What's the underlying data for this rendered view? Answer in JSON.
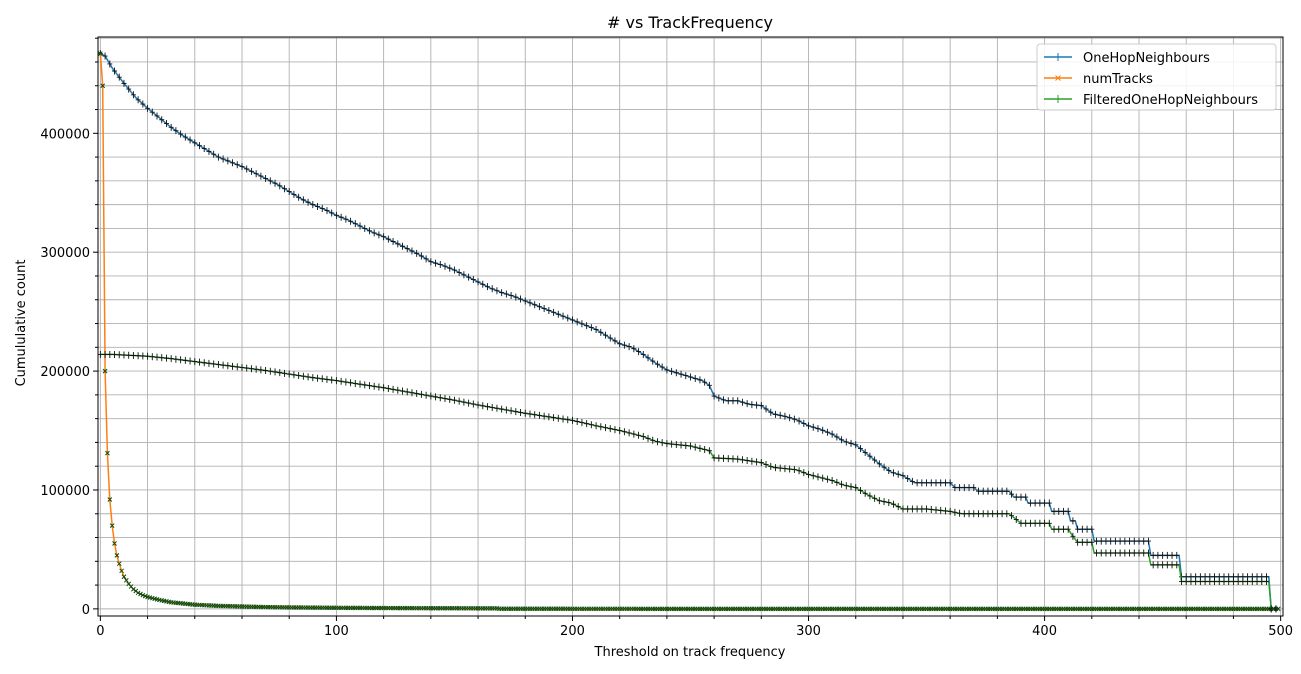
{
  "chart_data": {
    "type": "line",
    "title": "# vs TrackFrequency",
    "xlabel": "Threshold on track frequency",
    "ylabel": "Cumululative count",
    "xlim": [
      -1,
      501
    ],
    "ylim": [
      -6000,
      481000
    ],
    "xticks": [
      0,
      100,
      200,
      300,
      400,
      500
    ],
    "xtick_labels": [
      "0",
      "100",
      "200",
      "300",
      "400",
      "500"
    ],
    "yticks": [
      0,
      100000,
      200000,
      300000,
      400000
    ],
    "ytick_labels": [
      "0",
      "100000",
      "200000",
      "300000",
      "400000"
    ],
    "x_minor_step": 20,
    "y_minor_step": 20000,
    "grid": true,
    "legend_position": "upper right",
    "series": [
      {
        "name": "OneHopNeighbours",
        "color": "#1f77b4",
        "marker": "+",
        "points": [
          [
            0,
            467000
          ],
          [
            2,
            465000
          ],
          [
            5,
            455000
          ],
          [
            10,
            442000
          ],
          [
            15,
            430000
          ],
          [
            20,
            421000
          ],
          [
            25,
            413000
          ],
          [
            30,
            405000
          ],
          [
            35,
            398000
          ],
          [
            40,
            392000
          ],
          [
            45,
            386000
          ],
          [
            50,
            380000
          ],
          [
            55,
            376000
          ],
          [
            60,
            372000
          ],
          [
            65,
            367000
          ],
          [
            70,
            362000
          ],
          [
            75,
            357000
          ],
          [
            80,
            351000
          ],
          [
            85,
            345000
          ],
          [
            90,
            340000
          ],
          [
            95,
            336000
          ],
          [
            100,
            331000
          ],
          [
            105,
            327000
          ],
          [
            110,
            322000
          ],
          [
            115,
            317000
          ],
          [
            120,
            313000
          ],
          [
            125,
            308000
          ],
          [
            130,
            303000
          ],
          [
            135,
            298000
          ],
          [
            140,
            292000
          ],
          [
            145,
            289000
          ],
          [
            150,
            285000
          ],
          [
            155,
            280000
          ],
          [
            160,
            275000
          ],
          [
            165,
            270000
          ],
          [
            170,
            266000
          ],
          [
            175,
            263000
          ],
          [
            180,
            259000
          ],
          [
            185,
            255000
          ],
          [
            190,
            251000
          ],
          [
            195,
            247000
          ],
          [
            200,
            243000
          ],
          [
            205,
            239000
          ],
          [
            210,
            235000
          ],
          [
            215,
            229000
          ],
          [
            220,
            223000
          ],
          [
            225,
            220000
          ],
          [
            230,
            214000
          ],
          [
            235,
            207000
          ],
          [
            240,
            201000
          ],
          [
            245,
            198000
          ],
          [
            250,
            195000
          ],
          [
            255,
            192000
          ],
          [
            258,
            188000
          ],
          [
            260,
            179000
          ],
          [
            265,
            175000
          ],
          [
            270,
            175000
          ],
          [
            275,
            172000
          ],
          [
            280,
            171000
          ],
          [
            285,
            164000
          ],
          [
            290,
            162000
          ],
          [
            295,
            159000
          ],
          [
            300,
            154000
          ],
          [
            305,
            151000
          ],
          [
            310,
            147000
          ],
          [
            315,
            141000
          ],
          [
            320,
            138000
          ],
          [
            325,
            130000
          ],
          [
            330,
            122000
          ],
          [
            335,
            115000
          ],
          [
            340,
            112000
          ],
          [
            345,
            106000
          ],
          [
            350,
            106000
          ],
          [
            360,
            106000
          ],
          [
            362,
            102000
          ],
          [
            370,
            102000
          ],
          [
            372,
            99000
          ],
          [
            385,
            99000
          ],
          [
            387,
            94000
          ],
          [
            392,
            94000
          ],
          [
            393,
            89000
          ],
          [
            402,
            89000
          ],
          [
            403,
            82000
          ],
          [
            410,
            82000
          ],
          [
            411,
            74000
          ],
          [
            413,
            74000
          ],
          [
            414,
            67000
          ],
          [
            420,
            67000
          ],
          [
            421,
            57000
          ],
          [
            444,
            57000
          ],
          [
            445,
            45000
          ],
          [
            457,
            45000
          ],
          [
            458,
            27000
          ],
          [
            495,
            27000
          ],
          [
            496,
            0
          ],
          [
            499,
            0
          ]
        ]
      },
      {
        "name": "numTracks",
        "color": "#ff7f0e",
        "marker": "x",
        "points": [
          [
            0,
            467000
          ],
          [
            1,
            440000
          ],
          [
            2,
            200000
          ],
          [
            3,
            131000
          ],
          [
            4,
            92000
          ],
          [
            5,
            70000
          ],
          [
            6,
            55000
          ],
          [
            7,
            45000
          ],
          [
            8,
            38000
          ],
          [
            9,
            32000
          ],
          [
            10,
            27000
          ],
          [
            12,
            21000
          ],
          [
            14,
            16500
          ],
          [
            16,
            13500
          ],
          [
            18,
            11500
          ],
          [
            20,
            10000
          ],
          [
            25,
            7500
          ],
          [
            30,
            5500
          ],
          [
            35,
            4500
          ],
          [
            40,
            3500
          ],
          [
            50,
            2500
          ],
          [
            60,
            2000
          ],
          [
            70,
            1500
          ],
          [
            80,
            1200
          ],
          [
            100,
            900
          ],
          [
            130,
            600
          ],
          [
            168,
            400
          ],
          [
            169,
            100
          ],
          [
            250,
            0
          ],
          [
            499,
            0
          ]
        ]
      },
      {
        "name": "FilteredOneHopNeighbours",
        "color": "#2ca02c",
        "marker": "+",
        "points": [
          [
            0,
            214000
          ],
          [
            5,
            214000
          ],
          [
            10,
            213500
          ],
          [
            20,
            212500
          ],
          [
            30,
            210500
          ],
          [
            40,
            208000
          ],
          [
            50,
            205500
          ],
          [
            60,
            203000
          ],
          [
            70,
            200500
          ],
          [
            80,
            197500
          ],
          [
            90,
            194500
          ],
          [
            100,
            192000
          ],
          [
            110,
            189000
          ],
          [
            120,
            186000
          ],
          [
            130,
            182500
          ],
          [
            140,
            179000
          ],
          [
            150,
            175500
          ],
          [
            160,
            171500
          ],
          [
            170,
            168000
          ],
          [
            180,
            164500
          ],
          [
            190,
            161500
          ],
          [
            200,
            158500
          ],
          [
            210,
            154000
          ],
          [
            220,
            150000
          ],
          [
            230,
            145000
          ],
          [
            235,
            141000
          ],
          [
            240,
            139000
          ],
          [
            250,
            137000
          ],
          [
            258,
            133000
          ],
          [
            260,
            127000
          ],
          [
            270,
            126000
          ],
          [
            280,
            123000
          ],
          [
            285,
            119000
          ],
          [
            295,
            117000
          ],
          [
            300,
            113000
          ],
          [
            310,
            108000
          ],
          [
            315,
            104000
          ],
          [
            320,
            102000
          ],
          [
            325,
            96000
          ],
          [
            330,
            91000
          ],
          [
            335,
            89000
          ],
          [
            340,
            84000
          ],
          [
            350,
            84000
          ],
          [
            360,
            82000
          ],
          [
            365,
            80000
          ],
          [
            385,
            80000
          ],
          [
            390,
            72000
          ],
          [
            402,
            72000
          ],
          [
            403,
            67000
          ],
          [
            410,
            67000
          ],
          [
            412,
            61000
          ],
          [
            414,
            56000
          ],
          [
            420,
            56000
          ],
          [
            421,
            47000
          ],
          [
            444,
            47000
          ],
          [
            445,
            37000
          ],
          [
            457,
            37000
          ],
          [
            458,
            23000
          ],
          [
            495,
            23000
          ],
          [
            496,
            0
          ],
          [
            499,
            0
          ]
        ]
      }
    ]
  }
}
